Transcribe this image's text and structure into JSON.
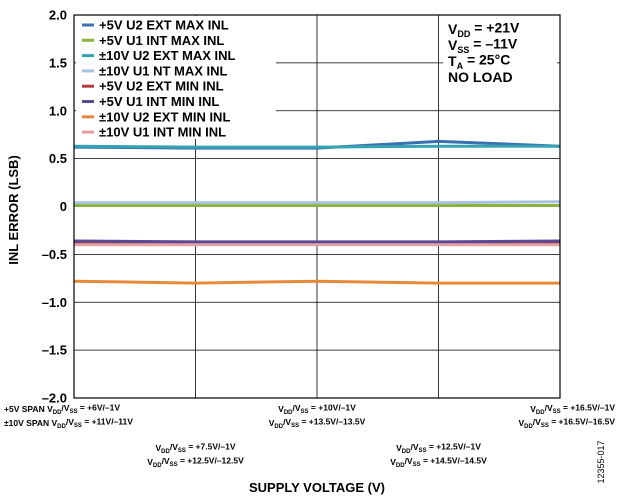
{
  "chart_data": {
    "type": "line",
    "xlabel": "SUPPLY VOLTAGE (V)",
    "ylabel": "INL ERROR (LSB)",
    "ylim": [
      -2.0,
      2.0
    ],
    "yticks": [
      "2.0",
      "1.5",
      "1.0",
      "0.5",
      "0",
      "–0.5",
      "–1.0",
      "–1.5",
      "–2.0"
    ],
    "grid": true,
    "legend_position": "top-left",
    "categories": [
      {
        "lines": [
          [
            {
              "t": "+5V SPAN V"
            },
            {
              "s": "DD"
            },
            {
              "t": "/V"
            },
            {
              "s": "SS"
            },
            {
              "t": " = +6V/–1V"
            }
          ],
          [
            {
              "t": "±10V SPAN V"
            },
            {
              "s": "DD"
            },
            {
              "t": "/V"
            },
            {
              "s": "SS"
            },
            {
              "t": " = +11V/–11V"
            }
          ]
        ],
        "label_row": "top",
        "align": "start"
      },
      {
        "lines": [
          [
            {
              "t": "V"
            },
            {
              "s": "DD"
            },
            {
              "t": "/V"
            },
            {
              "s": "SS"
            },
            {
              "t": " = +7.5V/–1V"
            }
          ],
          [
            {
              "t": "V"
            },
            {
              "s": "DD"
            },
            {
              "t": "/V"
            },
            {
              "s": "SS"
            },
            {
              "t": " = +12.5V/–12.5V"
            }
          ]
        ],
        "label_row": "bottom",
        "align": "middle"
      },
      {
        "lines": [
          [
            {
              "t": "V"
            },
            {
              "s": "DD"
            },
            {
              "t": "/V"
            },
            {
              "s": "SS"
            },
            {
              "t": " = +10V/–1V"
            }
          ],
          [
            {
              "t": "V"
            },
            {
              "s": "DD"
            },
            {
              "t": "/V"
            },
            {
              "s": "SS"
            },
            {
              "t": " = +13.5V/–13.5V"
            }
          ]
        ],
        "label_row": "top",
        "align": "middle"
      },
      {
        "lines": [
          [
            {
              "t": "V"
            },
            {
              "s": "DD"
            },
            {
              "t": "/V"
            },
            {
              "s": "SS"
            },
            {
              "t": " = +12.5V/–1V"
            }
          ],
          [
            {
              "t": "V"
            },
            {
              "s": "DD"
            },
            {
              "t": "/V"
            },
            {
              "s": "SS"
            },
            {
              "t": " = +14.5V/–14.5V"
            }
          ]
        ],
        "label_row": "bottom",
        "align": "middle"
      },
      {
        "lines": [
          [
            {
              "t": "V"
            },
            {
              "s": "DD"
            },
            {
              "t": "/V"
            },
            {
              "s": "SS"
            },
            {
              "t": " = +16.5V/–1V"
            }
          ],
          [
            {
              "t": "V"
            },
            {
              "s": "DD"
            },
            {
              "t": "/V"
            },
            {
              "s": "SS"
            },
            {
              "t": " = +16.5V/–16.5V"
            }
          ]
        ],
        "label_row": "top",
        "align": "end"
      }
    ],
    "series": [
      {
        "name": "+5V U2 EXT MAX INL",
        "color": "#3a6fb0",
        "values": [
          0.62,
          0.61,
          0.61,
          0.68,
          0.63
        ]
      },
      {
        "name": "+5V U1 INT MAX INL",
        "color": "#8cb43c",
        "values": [
          0.01,
          0.01,
          0.01,
          0.01,
          0.01
        ]
      },
      {
        "name": "±10V U2 EXT MAX INL",
        "color": "#36a3b3",
        "values": [
          0.63,
          0.62,
          0.62,
          0.63,
          0.63
        ]
      },
      {
        "name": "±10V U1 NT MAX INL",
        "color": "#a9c3df",
        "values": [
          0.04,
          0.04,
          0.04,
          0.04,
          0.05
        ]
      },
      {
        "name": "+5V U2 EXT MIN INL",
        "color": "#b03c3c",
        "values": [
          -0.38,
          -0.39,
          -0.39,
          -0.38,
          -0.38
        ]
      },
      {
        "name": "+5V U1 INT MIN INL",
        "color": "#5a4a96",
        "values": [
          -0.36,
          -0.37,
          -0.37,
          -0.37,
          -0.36
        ]
      },
      {
        "name": "±10V U2 EXT MIN INL",
        "color": "#e8893a",
        "values": [
          -0.78,
          -0.8,
          -0.78,
          -0.8,
          -0.8
        ]
      },
      {
        "name": "±10V U1 INT MIN INL",
        "color": "#e4a2a6",
        "values": [
          -0.4,
          -0.4,
          -0.4,
          -0.4,
          -0.4
        ]
      }
    ],
    "annotation": {
      "lines": [
        [
          {
            "t": "V"
          },
          {
            "s": "DD"
          },
          {
            "t": " = +21V"
          }
        ],
        [
          {
            "t": "V"
          },
          {
            "s": "SS"
          },
          {
            "t": " = –11V"
          }
        ],
        [
          {
            "t": "T"
          },
          {
            "s": "A"
          },
          {
            "t": " = 25°C"
          }
        ],
        [
          {
            "t": "NO LOAD"
          }
        ]
      ]
    },
    "figure_id": "12355-017"
  }
}
